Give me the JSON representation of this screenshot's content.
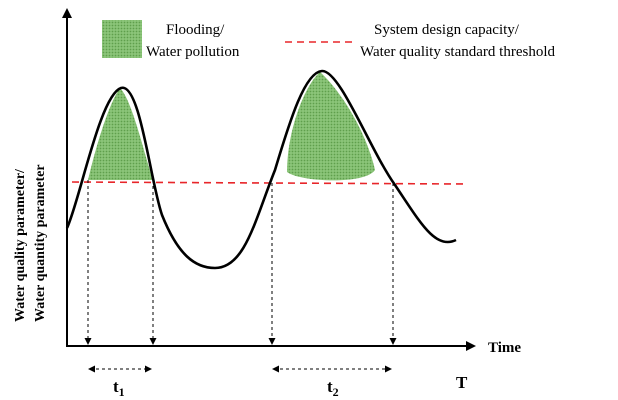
{
  "axes": {
    "y_label_line1": "Water quality parameter/",
    "y_label_line2": "Water quantity parameter",
    "x_label": "Time",
    "period_label": "T"
  },
  "legend": {
    "flood_label_line1": "Flooding/",
    "flood_label_line2": "Water pollution",
    "threshold_label_line1": "System design capacity/",
    "threshold_label_line2": "Water quality standard threshold"
  },
  "intervals": {
    "t1_main": "t",
    "t1_sub": "1",
    "t2_main": "t",
    "t2_sub": "2"
  },
  "colors": {
    "curve": "#000000",
    "threshold": "#e8262a",
    "flood_fill": "#74b35e",
    "flood_fill_light": "#9fd18a"
  }
}
